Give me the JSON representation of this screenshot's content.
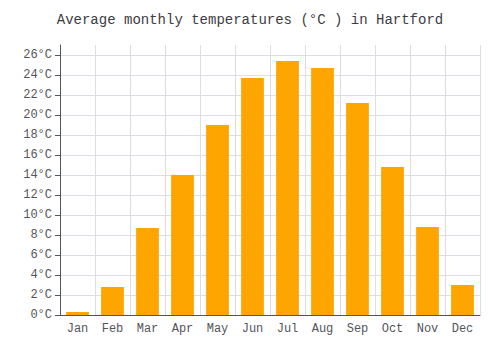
{
  "chart_data": {
    "type": "bar",
    "title": "Average monthly temperatures (°C ) in Hartford",
    "categories": [
      "Jan",
      "Feb",
      "Mar",
      "Apr",
      "May",
      "Jun",
      "Jul",
      "Aug",
      "Sep",
      "Oct",
      "Nov",
      "Dec"
    ],
    "values": [
      0.3,
      2.8,
      8.7,
      14.0,
      19.0,
      23.7,
      25.4,
      24.7,
      21.2,
      14.8,
      8.8,
      3.0
    ],
    "color": "#FFA500",
    "ylim": [
      0,
      27
    ],
    "yticks": [
      {
        "value": 0,
        "label": "0°C"
      },
      {
        "value": 2,
        "label": "2°C"
      },
      {
        "value": 4,
        "label": "4°C"
      },
      {
        "value": 6,
        "label": "6°C"
      },
      {
        "value": 8,
        "label": "8°C"
      },
      {
        "value": 10,
        "label": "10°C"
      },
      {
        "value": 12,
        "label": "12°C"
      },
      {
        "value": 14,
        "label": "14°C"
      },
      {
        "value": 16,
        "label": "16°C"
      },
      {
        "value": 18,
        "label": "18°C"
      },
      {
        "value": 20,
        "label": "20°C"
      },
      {
        "value": 22,
        "label": "22°C"
      },
      {
        "value": 24,
        "label": "24°C"
      },
      {
        "value": 26,
        "label": "26°C"
      }
    ],
    "grid": true
  }
}
